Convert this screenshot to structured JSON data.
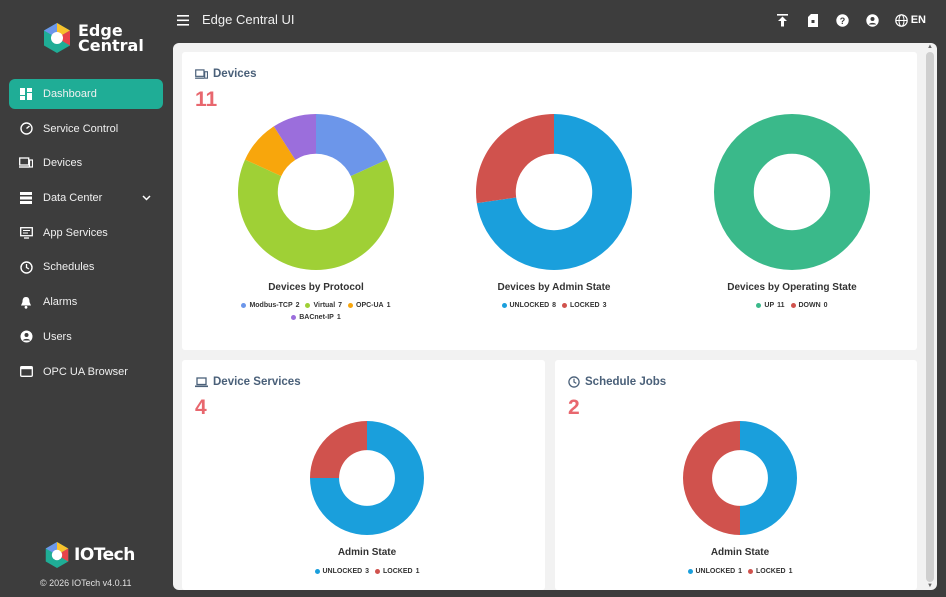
{
  "app": {
    "title": "Edge Central UI",
    "language": "EN"
  },
  "brand": {
    "line1": "Edge",
    "line2": "Central"
  },
  "sidebar": {
    "items": [
      {
        "label": "Dashboard",
        "icon": "dashboard-icon",
        "active": true
      },
      {
        "label": "Service Control",
        "icon": "speedometer-icon"
      },
      {
        "label": "Devices",
        "icon": "devices-icon"
      },
      {
        "label": "Data Center",
        "icon": "data-center-icon",
        "expandable": true
      },
      {
        "label": "App Services",
        "icon": "app-services-icon"
      },
      {
        "label": "Schedules",
        "icon": "clock-icon"
      },
      {
        "label": "Alarms",
        "icon": "bell-icon"
      },
      {
        "label": "Users",
        "icon": "user-icon"
      },
      {
        "label": "OPC UA Browser",
        "icon": "browser-icon"
      }
    ]
  },
  "footer": {
    "logo": "IOTech",
    "copyright": "© 2026 IOTech v4.0.11"
  },
  "colors": {
    "accent": "#1fad96",
    "count": "#e8676e",
    "blue": "#1a9fdc",
    "red": "#d0524d",
    "green": "#3ab98a",
    "lightblue": "#6c96ea",
    "lime": "#9fd036",
    "orange": "#f8a60c",
    "purple": "#9b6edc"
  },
  "devices_card": {
    "title": "Devices",
    "count": "11",
    "charts": [
      {
        "title": "Devices by Protocol",
        "legend": [
          {
            "label": "Modbus-TCP",
            "value": 2,
            "color": "#6c96ea"
          },
          {
            "label": "Virtual",
            "value": 7,
            "color": "#9fd036"
          },
          {
            "label": "OPC-UA",
            "value": 1,
            "color": "#f8a60c"
          },
          {
            "label": "BACnet-IP",
            "value": 1,
            "color": "#9b6edc"
          }
        ]
      },
      {
        "title": "Devices by Admin State",
        "legend": [
          {
            "label": "UNLOCKED",
            "value": 8,
            "color": "#1a9fdc"
          },
          {
            "label": "LOCKED",
            "value": 3,
            "color": "#d0524d"
          }
        ]
      },
      {
        "title": "Devices by Operating State",
        "legend": [
          {
            "label": "UP",
            "value": 11,
            "color": "#3ab98a"
          },
          {
            "label": "DOWN",
            "value": 0,
            "color": "#d0524d"
          }
        ]
      }
    ]
  },
  "services_card": {
    "title": "Device Services",
    "count": "4",
    "chart": {
      "title": "Admin State",
      "legend": [
        {
          "label": "UNLOCKED",
          "value": 3,
          "color": "#1a9fdc"
        },
        {
          "label": "LOCKED",
          "value": 1,
          "color": "#d0524d"
        }
      ]
    }
  },
  "schedule_card": {
    "title": "Schedule Jobs",
    "count": "2",
    "chart": {
      "title": "Admin State",
      "legend": [
        {
          "label": "UNLOCKED",
          "value": 1,
          "color": "#1a9fdc"
        },
        {
          "label": "LOCKED",
          "value": 1,
          "color": "#d0524d"
        }
      ]
    }
  },
  "chart_data": [
    {
      "type": "pie",
      "title": "Devices by Protocol",
      "categories": [
        "Modbus-TCP",
        "Virtual",
        "OPC-UA",
        "BACnet-IP"
      ],
      "values": [
        2,
        7,
        1,
        1
      ]
    },
    {
      "type": "pie",
      "title": "Devices by Admin State",
      "categories": [
        "UNLOCKED",
        "LOCKED"
      ],
      "values": [
        8,
        3
      ]
    },
    {
      "type": "pie",
      "title": "Devices by Operating State",
      "categories": [
        "UP",
        "DOWN"
      ],
      "values": [
        11,
        0
      ]
    },
    {
      "type": "pie",
      "title": "Admin State",
      "categories": [
        "UNLOCKED",
        "LOCKED"
      ],
      "values": [
        3,
        1
      ]
    },
    {
      "type": "pie",
      "title": "Admin State",
      "categories": [
        "UNLOCKED",
        "LOCKED"
      ],
      "values": [
        1,
        1
      ]
    }
  ]
}
